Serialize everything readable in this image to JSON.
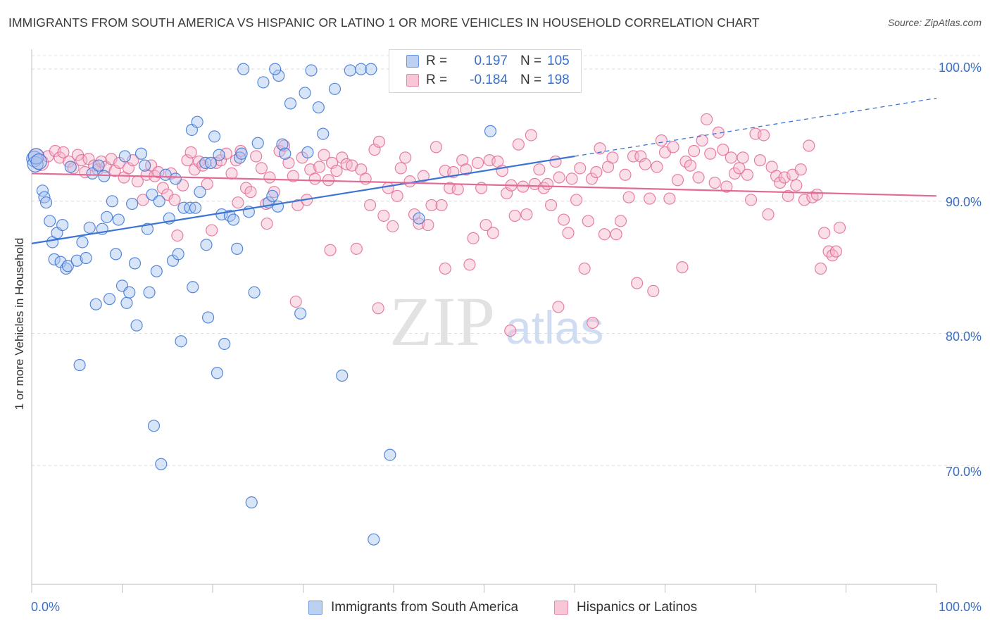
{
  "title": "IMMIGRANTS FROM SOUTH AMERICA VS HISPANIC OR LATINO 1 OR MORE VEHICLES IN HOUSEHOLD CORRELATION CHART",
  "source": "Source: ZipAtlas.com",
  "watermark": {
    "zip": "ZIP",
    "atlas": "atlas"
  },
  "colors": {
    "blue": "#3b74d4",
    "blue_fill": "#a9c4ef",
    "pink": "#e36a95",
    "pink_fill": "#f5b5cb",
    "axis_text": "#3b6fc6"
  },
  "legend": {
    "rows": [
      {
        "r_label": "R =",
        "r_value": "0.197",
        "n_label": "N =",
        "n_value": "105"
      },
      {
        "r_label": "R =",
        "r_value": "-0.184",
        "n_label": "N =",
        "n_value": "198"
      }
    ]
  },
  "bottom_legend": [
    "Immigrants from South America",
    "Hispanics or Latinos"
  ],
  "chart_data": {
    "type": "scatter",
    "title": "IMMIGRANTS FROM SOUTH AMERICA VS HISPANIC OR LATINO 1 OR MORE VEHICLES IN HOUSEHOLD CORRELATION CHART",
    "xlabel": "",
    "ylabel": "1 or more Vehicles in Household",
    "xlim": [
      0,
      100
    ],
    "ylim": [
      61,
      101.5
    ],
    "x_tick_labels": [
      "0.0%",
      "100.0%"
    ],
    "y_ticks": [
      70,
      80,
      90,
      100
    ],
    "y_tick_labels": [
      "70.0%",
      "80.0%",
      "90.0%",
      "100.0%"
    ],
    "grid": "horizontal dashed",
    "series": [
      {
        "name": "Immigrants from South America",
        "color": "#3b74d4",
        "trend": {
          "x0": 0,
          "y0": 86.8,
          "x1": 60,
          "y1": 93.4,
          "dashed_to_x": 100,
          "dashed_y1": 97.8
        },
        "points": [
          [
            0.3,
            93.2
          ],
          [
            0.4,
            92.8
          ],
          [
            0.5,
            93.4
          ],
          [
            0.8,
            93.0
          ],
          [
            1.2,
            90.8
          ],
          [
            1.4,
            90.3
          ],
          [
            1.6,
            89.9
          ],
          [
            2.0,
            88.5
          ],
          [
            2.3,
            86.9
          ],
          [
            2.5,
            85.6
          ],
          [
            2.8,
            87.6
          ],
          [
            3.2,
            85.4
          ],
          [
            3.4,
            88.2
          ],
          [
            3.8,
            84.9
          ],
          [
            4.0,
            85.1
          ],
          [
            4.3,
            92.6
          ],
          [
            5.0,
            85.5
          ],
          [
            5.3,
            77.6
          ],
          [
            5.6,
            86.9
          ],
          [
            6.0,
            85.7
          ],
          [
            6.4,
            88.0
          ],
          [
            6.7,
            92.1
          ],
          [
            7.1,
            82.2
          ],
          [
            7.4,
            92.7
          ],
          [
            7.8,
            87.9
          ],
          [
            8.0,
            91.9
          ],
          [
            8.3,
            88.8
          ],
          [
            8.6,
            82.6
          ],
          [
            8.9,
            90.0
          ],
          [
            9.3,
            86.0
          ],
          [
            9.6,
            88.6
          ],
          [
            10.0,
            83.6
          ],
          [
            10.3,
            93.4
          ],
          [
            10.5,
            82.3
          ],
          [
            10.8,
            83.1
          ],
          [
            11.1,
            89.8
          ],
          [
            11.4,
            85.3
          ],
          [
            11.6,
            80.6
          ],
          [
            12.1,
            93.6
          ],
          [
            12.5,
            92.7
          ],
          [
            12.8,
            87.9
          ],
          [
            13.0,
            83.1
          ],
          [
            13.3,
            90.5
          ],
          [
            13.5,
            73.0
          ],
          [
            13.8,
            84.7
          ],
          [
            14.1,
            90.0
          ],
          [
            14.3,
            70.1
          ],
          [
            14.8,
            92.0
          ],
          [
            15.2,
            88.7
          ],
          [
            15.6,
            85.5
          ],
          [
            15.9,
            91.7
          ],
          [
            16.2,
            86.0
          ],
          [
            16.5,
            79.4
          ],
          [
            16.8,
            89.5
          ],
          [
            17.5,
            89.5
          ],
          [
            17.7,
            95.4
          ],
          [
            17.8,
            83.5
          ],
          [
            18.1,
            89.5
          ],
          [
            18.3,
            96.0
          ],
          [
            18.6,
            90.7
          ],
          [
            19.2,
            92.9
          ],
          [
            19.3,
            86.7
          ],
          [
            19.5,
            81.2
          ],
          [
            19.8,
            92.9
          ],
          [
            20.2,
            94.9
          ],
          [
            20.5,
            77.0
          ],
          [
            20.7,
            93.5
          ],
          [
            21.0,
            89.0
          ],
          [
            21.3,
            79.2
          ],
          [
            21.9,
            88.9
          ],
          [
            22.3,
            88.6
          ],
          [
            22.7,
            86.4
          ],
          [
            23.0,
            93.3
          ],
          [
            23.2,
            93.6
          ],
          [
            24.0,
            89.2
          ],
          [
            24.3,
            67.2
          ],
          [
            24.6,
            83.1
          ],
          [
            25.0,
            94.4
          ],
          [
            26.2,
            89.9
          ],
          [
            26.6,
            90.4
          ],
          [
            27.2,
            89.6
          ],
          [
            27.7,
            94.3
          ],
          [
            28.0,
            93.6
          ],
          [
            28.6,
            97.4
          ],
          [
            29.7,
            81.5
          ],
          [
            30.2,
            98.2
          ],
          [
            30.5,
            93.7
          ],
          [
            30.9,
            99.9
          ],
          [
            31.7,
            97.1
          ],
          [
            32.2,
            95.1
          ],
          [
            33.5,
            98.5
          ],
          [
            34.3,
            76.8
          ],
          [
            35.2,
            99.9
          ],
          [
            36.4,
            100.0
          ],
          [
            37.5,
            100.0
          ],
          [
            37.8,
            64.4
          ],
          [
            39.6,
            70.8
          ],
          [
            42.8,
            88.7
          ],
          [
            50.7,
            95.3
          ],
          [
            59.5,
            99.9
          ],
          [
            27.3,
            99.5
          ],
          [
            25.6,
            99.0
          ],
          [
            23.4,
            100.0
          ],
          [
            26.9,
            100.0
          ],
          [
            44.9,
            100.0
          ]
        ]
      },
      {
        "name": "Hispanics or Latinos",
        "color": "#e36a95",
        "trend": {
          "x0": 0,
          "y0": 92.1,
          "x1": 100,
          "y1": 90.4
        },
        "points": [
          [
            0.5,
            93.4
          ],
          [
            1.0,
            92.9
          ],
          [
            1.8,
            93.4
          ],
          [
            2.6,
            93.8
          ],
          [
            3.1,
            93.3
          ],
          [
            3.5,
            93.7
          ],
          [
            4.1,
            93.0
          ],
          [
            4.6,
            92.5
          ],
          [
            5.1,
            93.5
          ],
          [
            5.5,
            93.1
          ],
          [
            5.9,
            92.2
          ],
          [
            6.3,
            93.2
          ],
          [
            6.9,
            92.7
          ],
          [
            7.3,
            92.4
          ],
          [
            7.7,
            93.0
          ],
          [
            8.2,
            92.6
          ],
          [
            8.8,
            93.2
          ],
          [
            9.2,
            92.3
          ],
          [
            9.7,
            92.9
          ],
          [
            10.2,
            91.8
          ],
          [
            10.7,
            92.5
          ],
          [
            11.2,
            93.1
          ],
          [
            11.7,
            91.5
          ],
          [
            12.3,
            90.1
          ],
          [
            12.7,
            92.0
          ],
          [
            13.2,
            92.7
          ],
          [
            13.6,
            91.9
          ],
          [
            14.0,
            92.2
          ],
          [
            14.5,
            91.0
          ],
          [
            15.0,
            90.5
          ],
          [
            15.4,
            92.1
          ],
          [
            15.8,
            90.1
          ],
          [
            16.1,
            87.4
          ],
          [
            16.7,
            91.2
          ],
          [
            17.2,
            93.1
          ],
          [
            17.6,
            93.7
          ],
          [
            18.0,
            92.4
          ],
          [
            18.5,
            93.0
          ],
          [
            18.9,
            92.7
          ],
          [
            19.4,
            91.3
          ],
          [
            19.9,
            87.8
          ],
          [
            20.4,
            92.9
          ],
          [
            20.9,
            93.1
          ],
          [
            21.5,
            93.6
          ],
          [
            22.1,
            92.1
          ],
          [
            22.6,
            93.1
          ],
          [
            23.1,
            93.8
          ],
          [
            23.7,
            91.0
          ],
          [
            24.2,
            90.7
          ],
          [
            24.8,
            93.4
          ],
          [
            25.4,
            92.5
          ],
          [
            25.9,
            89.8
          ],
          [
            26.3,
            91.8
          ],
          [
            26.8,
            90.7
          ],
          [
            27.4,
            93.8
          ],
          [
            27.9,
            94.2
          ],
          [
            28.4,
            92.9
          ],
          [
            28.9,
            91.9
          ],
          [
            29.4,
            89.7
          ],
          [
            29.9,
            93.3
          ],
          [
            30.4,
            90.1
          ],
          [
            30.8,
            92.4
          ],
          [
            31.3,
            91.7
          ],
          [
            31.8,
            92.6
          ],
          [
            32.3,
            93.5
          ],
          [
            32.8,
            91.6
          ],
          [
            33.2,
            92.9
          ],
          [
            33.7,
            92.3
          ],
          [
            34.3,
            93.3
          ],
          [
            34.8,
            92.8
          ],
          [
            35.4,
            92.7
          ],
          [
            35.9,
            86.4
          ],
          [
            36.4,
            92.4
          ],
          [
            36.9,
            91.7
          ],
          [
            37.4,
            89.7
          ],
          [
            37.9,
            93.9
          ],
          [
            38.4,
            94.5
          ],
          [
            38.9,
            88.9
          ],
          [
            39.4,
            91.0
          ],
          [
            39.9,
            88.1
          ],
          [
            40.4,
            90.4
          ],
          [
            40.8,
            92.5
          ],
          [
            41.3,
            93.3
          ],
          [
            41.8,
            91.5
          ],
          [
            42.3,
            89.0
          ],
          [
            42.8,
            88.3
          ],
          [
            43.3,
            91.9
          ],
          [
            43.8,
            88.2
          ],
          [
            44.2,
            89.7
          ],
          [
            44.7,
            94.1
          ],
          [
            45.3,
            89.7
          ],
          [
            45.7,
            92.3
          ],
          [
            46.2,
            91.0
          ],
          [
            46.6,
            92.2
          ],
          [
            47.1,
            90.9
          ],
          [
            47.6,
            93.1
          ],
          [
            48.0,
            92.4
          ],
          [
            48.4,
            85.2
          ],
          [
            48.8,
            87.2
          ],
          [
            49.3,
            92.9
          ],
          [
            49.7,
            91.0
          ],
          [
            50.2,
            88.2
          ],
          [
            50.6,
            93.1
          ],
          [
            51.0,
            87.6
          ],
          [
            51.5,
            93.0
          ],
          [
            52.0,
            92.3
          ],
          [
            52.5,
            90.6
          ],
          [
            53.0,
            91.2
          ],
          [
            53.4,
            88.9
          ],
          [
            53.8,
            94.3
          ],
          [
            54.3,
            91.1
          ],
          [
            54.7,
            89.0
          ],
          [
            55.2,
            95.0
          ],
          [
            55.6,
            91.3
          ],
          [
            56.1,
            92.4
          ],
          [
            56.6,
            91.0
          ],
          [
            57.0,
            91.3
          ],
          [
            57.4,
            89.7
          ],
          [
            57.9,
            93.0
          ],
          [
            58.3,
            91.8
          ],
          [
            58.8,
            88.6
          ],
          [
            59.3,
            87.6
          ],
          [
            59.7,
            91.7
          ],
          [
            60.2,
            90.1
          ],
          [
            60.6,
            92.5
          ],
          [
            61.1,
            84.9
          ],
          [
            61.5,
            88.5
          ],
          [
            61.9,
            91.7
          ],
          [
            62.4,
            92.2
          ],
          [
            62.8,
            94.0
          ],
          [
            63.3,
            87.5
          ],
          [
            63.7,
            92.6
          ],
          [
            64.2,
            93.3
          ],
          [
            64.6,
            87.5
          ],
          [
            65.1,
            88.5
          ],
          [
            65.6,
            92.0
          ],
          [
            66.0,
            90.3
          ],
          [
            66.5,
            93.4
          ],
          [
            66.9,
            83.8
          ],
          [
            67.3,
            93.4
          ],
          [
            67.8,
            92.8
          ],
          [
            68.3,
            90.2
          ],
          [
            68.7,
            83.2
          ],
          [
            69.1,
            92.6
          ],
          [
            69.6,
            94.6
          ],
          [
            70.0,
            93.7
          ],
          [
            70.5,
            90.2
          ],
          [
            70.9,
            94.1
          ],
          [
            71.4,
            91.6
          ],
          [
            71.9,
            85.0
          ],
          [
            72.3,
            93.0
          ],
          [
            72.8,
            92.7
          ],
          [
            73.2,
            93.8
          ],
          [
            73.7,
            91.8
          ],
          [
            74.1,
            94.6
          ],
          [
            74.6,
            96.2
          ],
          [
            75.0,
            93.6
          ],
          [
            75.5,
            91.4
          ],
          [
            75.9,
            95.2
          ],
          [
            76.4,
            93.9
          ],
          [
            76.8,
            91.1
          ],
          [
            77.3,
            93.3
          ],
          [
            77.7,
            92.1
          ],
          [
            78.2,
            92.5
          ],
          [
            78.6,
            93.3
          ],
          [
            79.1,
            92.0
          ],
          [
            79.5,
            90.1
          ],
          [
            80.0,
            95.1
          ],
          [
            80.5,
            93.1
          ],
          [
            80.9,
            95.0
          ],
          [
            81.4,
            89.0
          ],
          [
            81.8,
            92.6
          ],
          [
            82.3,
            91.9
          ],
          [
            82.7,
            91.4
          ],
          [
            83.2,
            91.8
          ],
          [
            83.6,
            90.4
          ],
          [
            84.1,
            92.0
          ],
          [
            84.5,
            91.2
          ],
          [
            85.0,
            92.4
          ],
          [
            85.4,
            90.1
          ],
          [
            85.9,
            94.2
          ],
          [
            86.3,
            90.3
          ],
          [
            86.8,
            90.5
          ],
          [
            87.2,
            84.9
          ],
          [
            87.6,
            87.6
          ],
          [
            88.1,
            86.2
          ],
          [
            88.5,
            85.9
          ],
          [
            88.9,
            86.2
          ],
          [
            89.3,
            88.0
          ],
          [
            62.0,
            80.8
          ],
          [
            58.2,
            82.0
          ],
          [
            45.7,
            84.9
          ],
          [
            38.3,
            81.9
          ],
          [
            29.2,
            82.4
          ],
          [
            22.8,
            89.9
          ],
          [
            26.0,
            88.3
          ],
          [
            33.0,
            86.3
          ],
          [
            52.9,
            80.2
          ]
        ]
      }
    ]
  }
}
